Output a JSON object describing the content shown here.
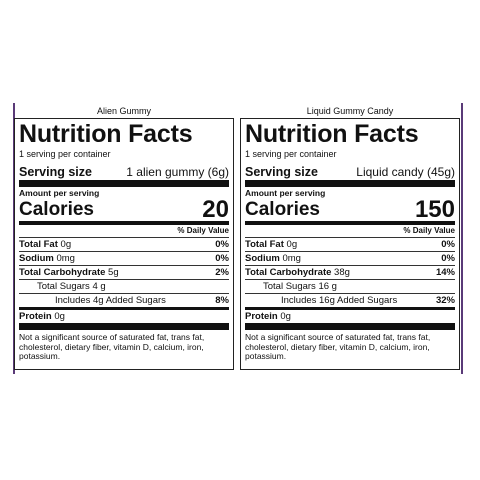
{
  "panels": [
    {
      "product": "Alien Gummy",
      "title": "Nutrition Facts",
      "servings": "1 serving per container",
      "serving_size_label": "Serving size",
      "serving_size": "1 alien gummy (6g)",
      "amount_per_serving": "Amount per serving",
      "calories_label": "Calories",
      "calories": "20",
      "daily_value_header": "% Daily Value",
      "rows": [
        {
          "name": "Total Fat",
          "amount": "0g",
          "dv": "0%"
        },
        {
          "name": "Sodium",
          "amount": "0mg",
          "dv": "0%"
        },
        {
          "name": "Total Carbohydrate",
          "amount": "5g",
          "dv": "2%",
          "sub": [
            {
              "name": "Total Sugars",
              "amount": "4 g",
              "sub": [
                {
                  "name": "Includes 4g Added Sugars",
                  "dv": "8%"
                }
              ]
            }
          ]
        }
      ],
      "protein": {
        "name": "Protein",
        "amount": "0g"
      },
      "footnote": "Not a significant source of saturated fat, trans fat, cholesterol, dietary fiber, vitamin D, calcium, iron, potassium."
    },
    {
      "product": "Liquid Gummy Candy",
      "title": "Nutrition Facts",
      "servings": "1 serving per container",
      "serving_size_label": "Serving size",
      "serving_size": "Liquid candy (45g)",
      "amount_per_serving": "Amount per serving",
      "calories_label": "Calories",
      "calories": "150",
      "daily_value_header": "% Daily Value",
      "rows": [
        {
          "name": "Total Fat",
          "amount": "0g",
          "dv": "0%"
        },
        {
          "name": "Sodium",
          "amount": "0mg",
          "dv": "0%"
        },
        {
          "name": "Total Carbohydrate",
          "amount": "38g",
          "dv": "14%",
          "sub": [
            {
              "name": "Total Sugars",
              "amount": "16 g",
              "sub": [
                {
                  "name": "Includes 16g Added Sugars",
                  "dv": "32%"
                }
              ]
            }
          ]
        }
      ],
      "protein": {
        "name": "Protein",
        "amount": "0g"
      },
      "footnote": "Not a significant source of saturated fat, trans fat, cholesterol, dietary fiber, vitamin D, calcium, iron, potassium."
    }
  ]
}
